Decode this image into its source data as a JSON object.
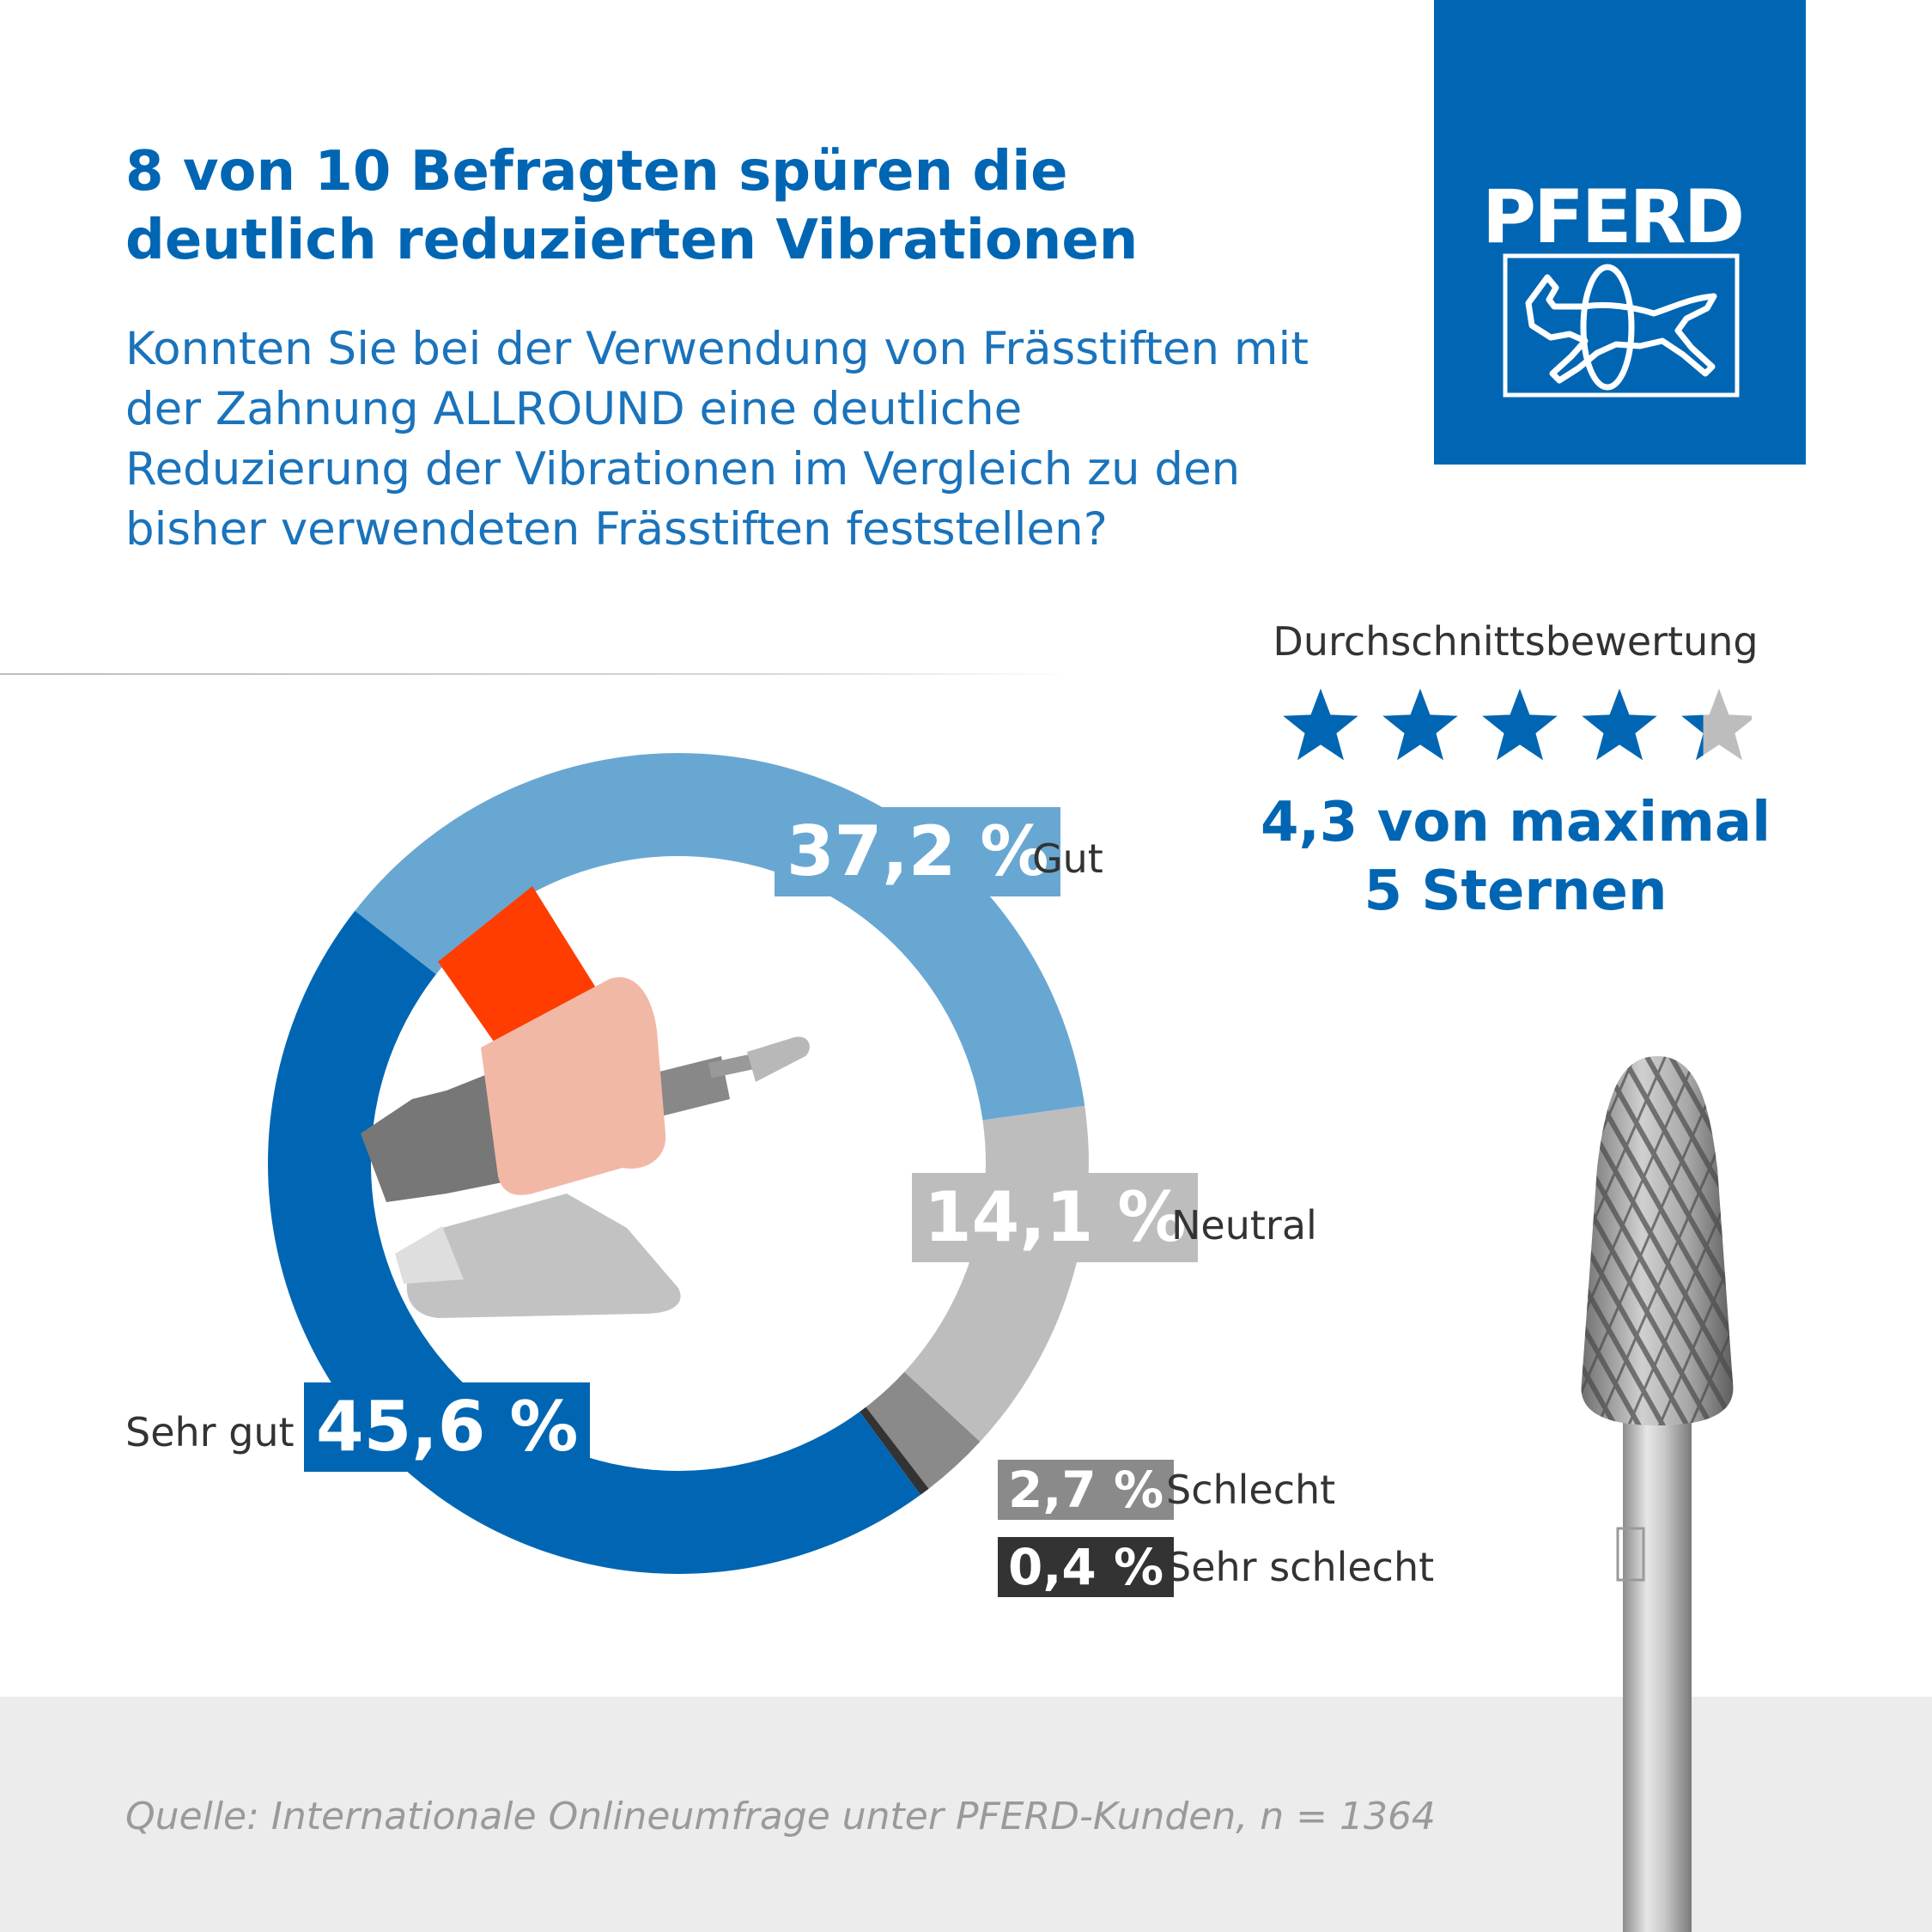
{
  "header": {
    "title": "8 von 10 Befragten spüren die deutlich reduzierten Vibrationen",
    "question": "Konnten Sie bei der Verwendung von Frässtiften mit der Zahnung ALLROUND eine deutliche Reduzierung der Vibrationen im Vergleich zu den bisher verwendeten Frässtiften feststellen?"
  },
  "logo": {
    "text": "PFERD",
    "color": "#0066b3"
  },
  "chart_data": {
    "type": "pie",
    "variant": "donut",
    "categories": [
      "Gut",
      "Neutral",
      "Schlecht",
      "Sehr schlecht",
      "Sehr gut"
    ],
    "values": [
      37.2,
      14.1,
      2.7,
      0.4,
      45.6
    ],
    "labels": [
      "37,2 %",
      "14,1 %",
      "2,7 %",
      "0,4 %",
      "45,6 %"
    ],
    "colors": [
      "#69a7d3",
      "#bdbdbd",
      "#8a8a8a",
      "#333333",
      "#0066b3"
    ],
    "title": "",
    "legend": "inline labels"
  },
  "rating": {
    "label": "Durchschnittsbewertung",
    "value": 4.3,
    "max": 5,
    "text": "4,3 von maximal 5 Sternen",
    "star_color": "#0066b3",
    "empty_color": "#bdbdbd"
  },
  "source": "Quelle: Internationale Onlineumfrage unter PFERD-Kunden, n = 1364"
}
